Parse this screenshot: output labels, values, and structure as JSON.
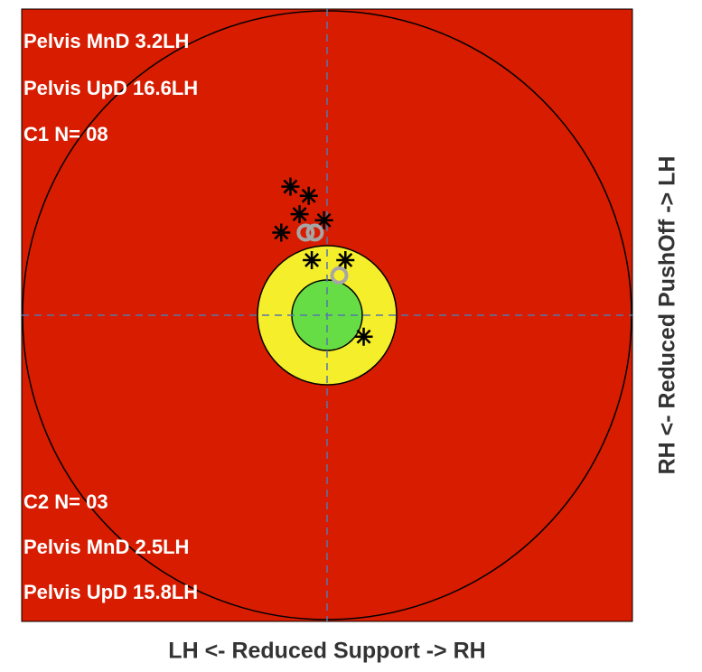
{
  "chart_data": {
    "type": "scatter",
    "xlabel": "LH <- Reduced Support -> RH",
    "ylabel": "RH <- Reduced PushOff -> LH",
    "annotations": [
      "Pelvis MnD 3.2LH",
      "Pelvis UpD 16.6LH",
      "C1 N= 08",
      "C2 N= 03",
      "Pelvis MnD 2.5LH",
      "Pelvis UpD 15.8LH"
    ],
    "xlim": [
      -1,
      1
    ],
    "ylim": [
      -1,
      1
    ],
    "series": [
      {
        "color": "#000000",
        "marker": "star",
        "x": [
          -0.12,
          -0.06,
          -0.09,
          -0.01,
          -0.15,
          -0.05,
          0.06,
          0.12
        ],
        "values": [
          0.42,
          0.39,
          0.33,
          0.31,
          0.27,
          0.18,
          0.18,
          -0.07
        ]
      },
      {
        "color": "#a6a6a6",
        "marker": "ring",
        "x": [
          -0.07,
          -0.04,
          0.04
        ],
        "values": [
          0.27,
          0.27,
          0.13
        ]
      }
    ]
  }
}
